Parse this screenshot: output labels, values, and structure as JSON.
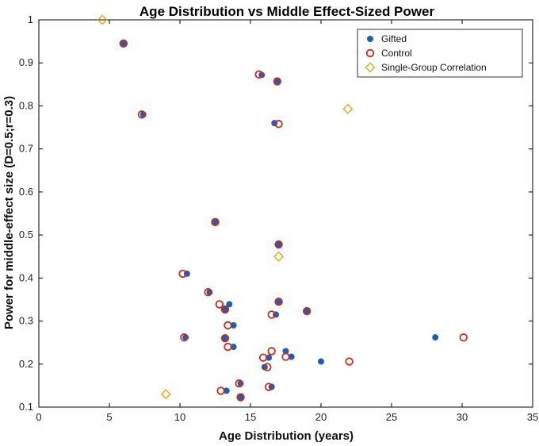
{
  "chart_data": {
    "type": "scatter",
    "title": "Age Distribution vs Middle Effect-Sized Power",
    "xlabel": "Age Distribution (years)",
    "ylabel": "Power for middle-effect size (D=0.5;r=0.3)",
    "xlim": [
      0,
      35
    ],
    "ylim": [
      0.1,
      1.0
    ],
    "x_ticks": [
      0,
      5,
      10,
      15,
      20,
      25,
      30,
      35
    ],
    "y_ticks": [
      0.1,
      0.2,
      0.3,
      0.4,
      0.5,
      0.6,
      0.7,
      0.8,
      0.9,
      1.0
    ],
    "x_tick_labels": [
      "0",
      "5",
      "10",
      "15",
      "20",
      "25",
      "30",
      "35"
    ],
    "y_tick_labels": [
      "0.1",
      "0.2",
      "0.3",
      "0.4",
      "0.5",
      "0.6",
      "0.7",
      "0.8",
      "0.9",
      "1"
    ],
    "legend_position": "top-right",
    "series": [
      {
        "name": "Gifted",
        "marker": "filled-circle",
        "color": "#1f5fb0",
        "points": [
          [
            6.0,
            0.945
          ],
          [
            7.4,
            0.78
          ],
          [
            15.8,
            0.872
          ],
          [
            16.9,
            0.857
          ],
          [
            16.7,
            0.76
          ],
          [
            12.5,
            0.53
          ],
          [
            17.0,
            0.478
          ],
          [
            10.5,
            0.41
          ],
          [
            12.1,
            0.367
          ],
          [
            13.5,
            0.339
          ],
          [
            17.0,
            0.345
          ],
          [
            13.2,
            0.327
          ],
          [
            16.8,
            0.315
          ],
          [
            19.0,
            0.323
          ],
          [
            13.8,
            0.29
          ],
          [
            10.4,
            0.262
          ],
          [
            13.2,
            0.26
          ],
          [
            13.8,
            0.24
          ],
          [
            17.5,
            0.23
          ],
          [
            16.3,
            0.215
          ],
          [
            17.9,
            0.217
          ],
          [
            20.0,
            0.206
          ],
          [
            16.0,
            0.193
          ],
          [
            14.3,
            0.155
          ],
          [
            16.5,
            0.147
          ],
          [
            13.3,
            0.138
          ],
          [
            14.3,
            0.123
          ],
          [
            28.1,
            0.262
          ]
        ]
      },
      {
        "name": "Control",
        "marker": "open-circle",
        "color": "#cc2a1a",
        "points": [
          [
            6.0,
            0.945
          ],
          [
            7.3,
            0.78
          ],
          [
            15.6,
            0.873
          ],
          [
            16.9,
            0.857
          ],
          [
            17.0,
            0.758
          ],
          [
            12.5,
            0.53
          ],
          [
            17.0,
            0.478
          ],
          [
            10.2,
            0.41
          ],
          [
            12.0,
            0.367
          ],
          [
            12.8,
            0.339
          ],
          [
            17.0,
            0.345
          ],
          [
            13.2,
            0.327
          ],
          [
            16.5,
            0.315
          ],
          [
            19.0,
            0.323
          ],
          [
            13.4,
            0.29
          ],
          [
            10.3,
            0.262
          ],
          [
            13.2,
            0.26
          ],
          [
            13.4,
            0.24
          ],
          [
            16.5,
            0.23
          ],
          [
            15.9,
            0.215
          ],
          [
            17.5,
            0.217
          ],
          [
            22.0,
            0.206
          ],
          [
            16.2,
            0.193
          ],
          [
            14.2,
            0.155
          ],
          [
            16.3,
            0.147
          ],
          [
            12.9,
            0.138
          ],
          [
            14.3,
            0.123
          ],
          [
            30.1,
            0.262
          ]
        ]
      },
      {
        "name": "Single-Group Correlation",
        "marker": "open-diamond",
        "color": "#e3a80f",
        "points": [
          [
            4.5,
            1.0
          ],
          [
            21.9,
            0.793
          ],
          [
            17.0,
            0.45
          ],
          [
            9.0,
            0.13
          ]
        ]
      }
    ]
  }
}
